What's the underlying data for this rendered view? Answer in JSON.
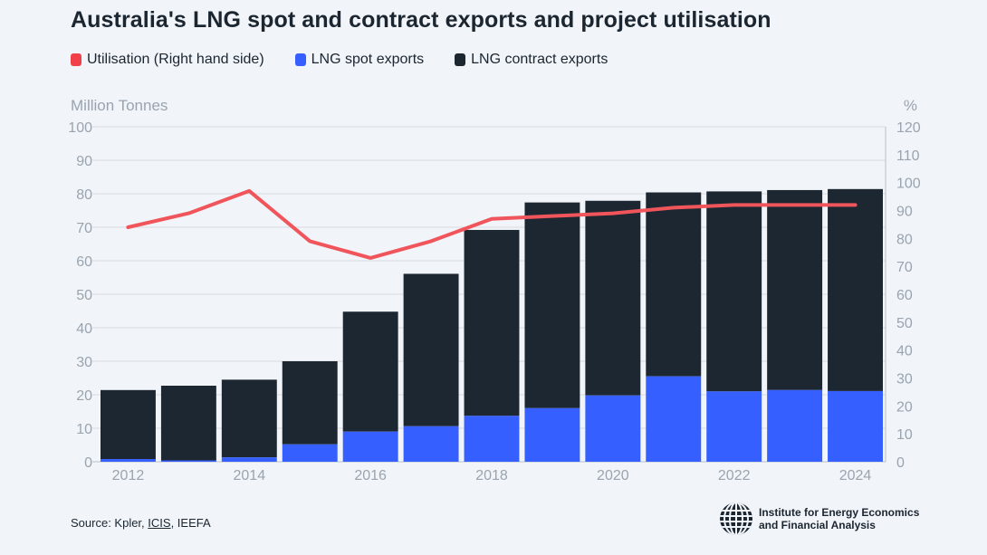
{
  "chart_data": {
    "type": "bar",
    "title": "Australia's LNG spot and contract exports and project utilisation",
    "legend": [
      {
        "label": "Utilisation (Right hand side)",
        "color": "#f0414a"
      },
      {
        "label": "LNG spot exports",
        "color": "#3560ff"
      },
      {
        "label": "LNG contract exports",
        "color": "#1d2731"
      }
    ],
    "ylabel": "Million Tonnes",
    "y2label": "%",
    "ylim": [
      0,
      100
    ],
    "y2lim": [
      0,
      120
    ],
    "yticks": [
      "0",
      "10",
      "20",
      "30",
      "40",
      "50",
      "60",
      "70",
      "80",
      "90",
      "100"
    ],
    "y2ticks": [
      "0",
      "10",
      "20",
      "30",
      "40",
      "50",
      "60",
      "70",
      "80",
      "90",
      "100",
      "110",
      "120"
    ],
    "categories": [
      "2012",
      "2013",
      "2014",
      "2015",
      "2016",
      "2017",
      "2018",
      "2019",
      "2020",
      "2021",
      "2022",
      "2023",
      "2024"
    ],
    "xtick_labels": [
      "2012",
      "",
      "2014",
      "",
      "2016",
      "",
      "2018",
      "",
      "2020",
      "",
      "2022",
      "",
      "2024"
    ],
    "series": [
      {
        "name": "LNG spot exports",
        "kind": "bar",
        "axis": "left",
        "values": [
          0.8,
          0.4,
          1.3,
          5.2,
          9.0,
          10.6,
          13.7,
          16.0,
          19.8,
          25.5,
          21.0,
          21.4,
          21.1
        ]
      },
      {
        "name": "LNG contract exports",
        "kind": "bar",
        "axis": "left",
        "values": [
          20.6,
          22.3,
          23.2,
          24.8,
          35.8,
          45.5,
          55.5,
          61.4,
          58.1,
          54.9,
          59.7,
          59.7,
          60.3
        ]
      },
      {
        "name": "Utilisation (Right hand side)",
        "kind": "line",
        "axis": "right",
        "values": [
          84,
          89,
          97,
          79,
          73,
          79,
          87,
          88,
          89,
          91,
          92,
          92,
          92
        ]
      }
    ]
  },
  "footer": {
    "source_prefix": "Source: Kpler, ",
    "source_link": "ICIS",
    "source_suffix": ", IEEFA",
    "logo_line1": "Institute for Energy Economics",
    "logo_line2": "and Financial Analysis"
  }
}
